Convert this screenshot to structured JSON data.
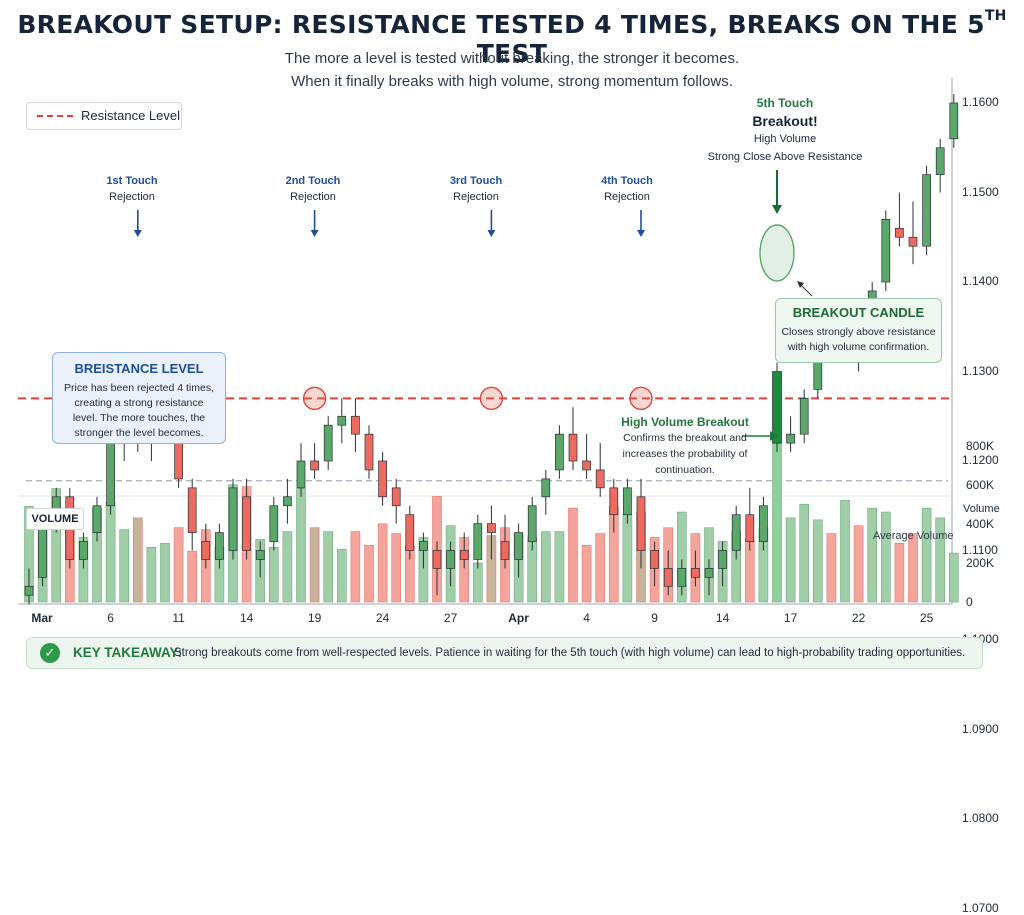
{
  "title": {
    "main": "BREAKOUT SETUP: RESISTANCE TESTED 4 TIMES, BREAKS ON THE 5",
    "sup": "TH",
    "end": " TEST"
  },
  "subtitle": [
    "The more a level is tested without breaking, the stronger it becomes.",
    "When it finally breaks with high volume, strong momentum follows."
  ],
  "legend": {
    "resistance": "Resistance Level"
  },
  "touches": [
    {
      "title": "1st Touch",
      "sub": "Rejection"
    },
    {
      "title": "2nd Touch",
      "sub": "Rejection"
    },
    {
      "title": "3rd Touch",
      "sub": "Rejection"
    },
    {
      "title": "4th Touch",
      "sub": "Rejection"
    }
  ],
  "fifth_touch": {
    "title": "5th Touch",
    "headline": "Breakout!",
    "line1": "High Volume",
    "line2": "Strong Close Above Resistance"
  },
  "resistance_box": {
    "title": "BREISTANCE LEVEL",
    "body": "Price has been rejected 4 times, creating a strong resistance level. The more touches, the stronger the level becomes."
  },
  "breakout_box": {
    "title": "BREAKOUT CANDLE",
    "body": "Closes strongly above resistance with high volume confirmation."
  },
  "high_volume": {
    "title": "High Volume Breakout",
    "body": "Confirms the breakout and increases the probability of continuation."
  },
  "volume_box": "VOLUME",
  "average_volume_label": "Average Volume",
  "volume_axis_title": "Volume",
  "takeaway": {
    "key": "KEY TAKEAWAY:",
    "text": "Strong breakouts come from well-respected levels. Patience in waiting for the 5th touch (with high volume) can lead to high-probability trading opportunities."
  },
  "colors": {
    "up": "#5aa86a",
    "down": "#ec6a5f",
    "resistance": "#e0443a",
    "breakout": "#1e8a3c"
  },
  "chart_data": {
    "type": "candlestick",
    "resistance": 1.127,
    "ylim": [
      1.063,
      1.1625
    ],
    "price_ticks": [
      "1.1600",
      "1.1500",
      "1.1400",
      "1.1300",
      "1.1200",
      "1.1100",
      "1.1000",
      "1.0900",
      "1.0800",
      "1.0700"
    ],
    "volume_ticks": [
      "800K",
      "600K",
      "400K",
      "200K",
      "0"
    ],
    "volume_ylim": [
      0,
      900000
    ],
    "average_volume": 620000,
    "x_labels": [
      {
        "label": "Mar",
        "index": 0,
        "bold": true
      },
      {
        "label": "6",
        "index": 6
      },
      {
        "label": "11",
        "index": 11
      },
      {
        "label": "14",
        "index": 16
      },
      {
        "label": "19",
        "index": 21
      },
      {
        "label": "24",
        "index": 26
      },
      {
        "label": "27",
        "index": 31
      },
      {
        "label": "Apr",
        "index": 36,
        "bold": true
      },
      {
        "label": "4",
        "index": 41
      },
      {
        "label": "9",
        "index": 46
      },
      {
        "label": "14",
        "index": 51
      },
      {
        "label": "17",
        "index": 56
      },
      {
        "label": "22",
        "index": 61
      },
      {
        "label": "25",
        "index": 66
      }
    ],
    "touch_indices": [
      8,
      21,
      34,
      45
    ],
    "breakout_index": 55,
    "candles": [
      {
        "o": 1.105,
        "h": 1.108,
        "l": 1.104,
        "c": 1.106,
        "v": 490000
      },
      {
        "o": 1.107,
        "h": 1.114,
        "l": 1.106,
        "c": 1.113,
        "v": 420000
      },
      {
        "o": 1.114,
        "h": 1.117,
        "l": 1.112,
        "c": 1.116,
        "v": 580000
      },
      {
        "o": 1.116,
        "h": 1.117,
        "l": 1.108,
        "c": 1.109,
        "v": 380000
      },
      {
        "o": 1.109,
        "h": 1.112,
        "l": 1.108,
        "c": 1.111,
        "v": 330000
      },
      {
        "o": 1.112,
        "h": 1.116,
        "l": 1.111,
        "c": 1.115,
        "v": 480000
      },
      {
        "o": 1.115,
        "h": 1.123,
        "l": 1.114,
        "c": 1.122,
        "v": 510000
      },
      {
        "o": 1.122,
        "h": 1.126,
        "l": 1.12,
        "c": 1.124,
        "v": 370000
      },
      {
        "o": 1.124,
        "h": 1.127,
        "l": 1.121,
        "c": 1.123,
        "v": 430000
      },
      {
        "o": 1.123,
        "h": 1.126,
        "l": 1.12,
        "c": 1.125,
        "v": 280000
      },
      {
        "o": 1.125,
        "h": 1.128,
        "l": 1.123,
        "c": 1.126,
        "v": 300000
      },
      {
        "o": 1.123,
        "h": 1.125,
        "l": 1.117,
        "c": 1.118,
        "v": 380000
      },
      {
        "o": 1.117,
        "h": 1.118,
        "l": 1.11,
        "c": 1.112,
        "v": 260000
      },
      {
        "o": 1.111,
        "h": 1.113,
        "l": 1.108,
        "c": 1.109,
        "v": 370000
      },
      {
        "o": 1.109,
        "h": 1.113,
        "l": 1.108,
        "c": 1.112,
        "v": 280000
      },
      {
        "o": 1.11,
        "h": 1.118,
        "l": 1.109,
        "c": 1.117,
        "v": 600000
      },
      {
        "o": 1.116,
        "h": 1.118,
        "l": 1.109,
        "c": 1.11,
        "v": 590000
      },
      {
        "o": 1.109,
        "h": 1.111,
        "l": 1.107,
        "c": 1.11,
        "v": 320000
      },
      {
        "o": 1.111,
        "h": 1.116,
        "l": 1.11,
        "c": 1.115,
        "v": 280000
      },
      {
        "o": 1.115,
        "h": 1.118,
        "l": 1.113,
        "c": 1.116,
        "v": 360000
      },
      {
        "o": 1.117,
        "h": 1.122,
        "l": 1.116,
        "c": 1.12,
        "v": 580000
      },
      {
        "o": 1.12,
        "h": 1.122,
        "l": 1.118,
        "c": 1.119,
        "v": 380000
      },
      {
        "o": 1.12,
        "h": 1.125,
        "l": 1.119,
        "c": 1.124,
        "v": 360000
      },
      {
        "o": 1.124,
        "h": 1.127,
        "l": 1.122,
        "c": 1.125,
        "v": 270000
      },
      {
        "o": 1.125,
        "h": 1.127,
        "l": 1.121,
        "c": 1.123,
        "v": 360000
      },
      {
        "o": 1.123,
        "h": 1.124,
        "l": 1.118,
        "c": 1.119,
        "v": 290000
      },
      {
        "o": 1.12,
        "h": 1.121,
        "l": 1.115,
        "c": 1.116,
        "v": 400000
      },
      {
        "o": 1.117,
        "h": 1.118,
        "l": 1.113,
        "c": 1.115,
        "v": 350000
      },
      {
        "o": 1.114,
        "h": 1.115,
        "l": 1.109,
        "c": 1.11,
        "v": 290000
      },
      {
        "o": 1.11,
        "h": 1.112,
        "l": 1.108,
        "c": 1.111,
        "v": 330000
      },
      {
        "o": 1.11,
        "h": 1.111,
        "l": 1.105,
        "c": 1.108,
        "v": 540000
      },
      {
        "o": 1.108,
        "h": 1.111,
        "l": 1.106,
        "c": 1.11,
        "v": 390000
      },
      {
        "o": 1.11,
        "h": 1.112,
        "l": 1.108,
        "c": 1.109,
        "v": 330000
      },
      {
        "o": 1.109,
        "h": 1.114,
        "l": 1.108,
        "c": 1.113,
        "v": 200000
      },
      {
        "o": 1.113,
        "h": 1.115,
        "l": 1.109,
        "c": 1.112,
        "v": 340000
      },
      {
        "o": 1.111,
        "h": 1.114,
        "l": 1.108,
        "c": 1.109,
        "v": 380000
      },
      {
        "o": 1.109,
        "h": 1.113,
        "l": 1.107,
        "c": 1.112,
        "v": 350000
      },
      {
        "o": 1.111,
        "h": 1.116,
        "l": 1.11,
        "c": 1.115,
        "v": 330000
      },
      {
        "o": 1.116,
        "h": 1.119,
        "l": 1.114,
        "c": 1.118,
        "v": 360000
      },
      {
        "o": 1.119,
        "h": 1.124,
        "l": 1.118,
        "c": 1.123,
        "v": 360000
      },
      {
        "o": 1.123,
        "h": 1.126,
        "l": 1.119,
        "c": 1.12,
        "v": 480000
      },
      {
        "o": 1.12,
        "h": 1.123,
        "l": 1.118,
        "c": 1.119,
        "v": 290000
      },
      {
        "o": 1.119,
        "h": 1.122,
        "l": 1.116,
        "c": 1.117,
        "v": 350000
      },
      {
        "o": 1.117,
        "h": 1.118,
        "l": 1.112,
        "c": 1.114,
        "v": 490000
      },
      {
        "o": 1.114,
        "h": 1.118,
        "l": 1.113,
        "c": 1.117,
        "v": 450000
      },
      {
        "o": 1.116,
        "h": 1.118,
        "l": 1.108,
        "c": 1.11,
        "v": 460000
      },
      {
        "o": 1.11,
        "h": 1.111,
        "l": 1.106,
        "c": 1.108,
        "v": 330000
      },
      {
        "o": 1.108,
        "h": 1.11,
        "l": 1.105,
        "c": 1.106,
        "v": 380000
      },
      {
        "o": 1.106,
        "h": 1.109,
        "l": 1.105,
        "c": 1.108,
        "v": 460000
      },
      {
        "o": 1.108,
        "h": 1.11,
        "l": 1.106,
        "c": 1.107,
        "v": 350000
      },
      {
        "o": 1.107,
        "h": 1.109,
        "l": 1.105,
        "c": 1.108,
        "v": 380000
      },
      {
        "o": 1.108,
        "h": 1.111,
        "l": 1.106,
        "c": 1.11,
        "v": 310000
      },
      {
        "o": 1.11,
        "h": 1.115,
        "l": 1.109,
        "c": 1.114,
        "v": 360000
      },
      {
        "o": 1.114,
        "h": 1.117,
        "l": 1.11,
        "c": 1.111,
        "v": 320000
      },
      {
        "o": 1.111,
        "h": 1.116,
        "l": 1.11,
        "c": 1.115,
        "v": 380000
      },
      {
        "o": 1.122,
        "h": 1.131,
        "l": 1.121,
        "c": 1.13,
        "v": 810000
      },
      {
        "o": 1.122,
        "h": 1.125,
        "l": 1.121,
        "c": 1.123,
        "v": 430000
      },
      {
        "o": 1.123,
        "h": 1.128,
        "l": 1.122,
        "c": 1.127,
        "v": 500000
      },
      {
        "o": 1.128,
        "h": 1.135,
        "l": 1.127,
        "c": 1.134,
        "v": 420000
      },
      {
        "o": 1.134,
        "h": 1.136,
        "l": 1.131,
        "c": 1.132,
        "v": 350000
      },
      {
        "o": 1.133,
        "h": 1.135,
        "l": 1.131,
        "c": 1.134,
        "v": 520000
      },
      {
        "o": 1.134,
        "h": 1.137,
        "l": 1.13,
        "c": 1.132,
        "v": 390000
      },
      {
        "o": 1.134,
        "h": 1.14,
        "l": 1.133,
        "c": 1.139,
        "v": 480000
      },
      {
        "o": 1.14,
        "h": 1.148,
        "l": 1.139,
        "c": 1.147,
        "v": 460000
      },
      {
        "o": 1.146,
        "h": 1.15,
        "l": 1.144,
        "c": 1.145,
        "v": 300000
      },
      {
        "o": 1.145,
        "h": 1.149,
        "l": 1.142,
        "c": 1.144,
        "v": 350000
      },
      {
        "o": 1.144,
        "h": 1.153,
        "l": 1.143,
        "c": 1.152,
        "v": 480000
      },
      {
        "o": 1.152,
        "h": 1.156,
        "l": 1.15,
        "c": 1.155,
        "v": 430000
      },
      {
        "o": 1.156,
        "h": 1.161,
        "l": 1.155,
        "c": 1.16,
        "v": 250000
      }
    ]
  }
}
